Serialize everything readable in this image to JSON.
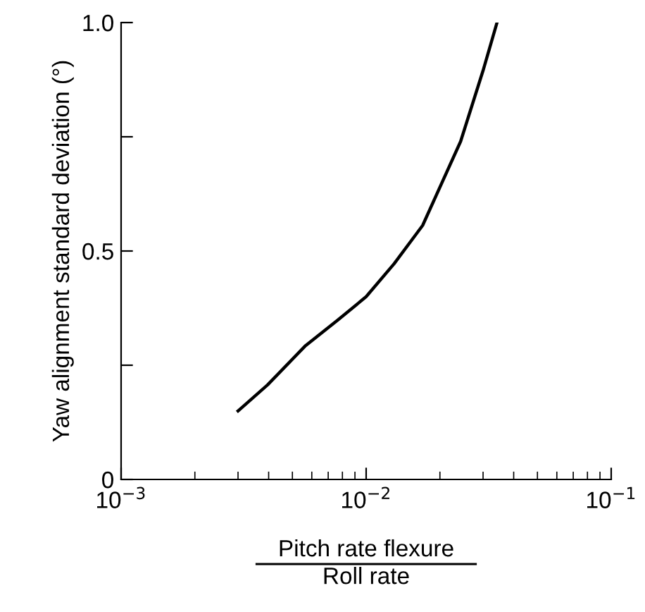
{
  "chart_data": {
    "type": "line",
    "xlabel": "Pitch rate flexure\nRoll rate",
    "ylabel": "Yaw alignment standard deviation (°)",
    "log": "x",
    "xlim": [
      0.001,
      0.1
    ],
    "ylim": [
      0,
      1.0
    ],
    "xticks": [
      {
        "value": 0.001,
        "label": "10$^{−3}$"
      },
      {
        "value": 0.01,
        "label": "10$^{−2}$"
      },
      {
        "value": 0.1,
        "label": "10$^{−1}$"
      }
    ],
    "yticks": [
      0,
      {
        "value": 0.25,
        "label": null
      },
      0.5,
      {
        "value": 0.75,
        "label": null
      },
      {
        "value": 1.0,
        "label": "1.0"
      }
    ],
    "grid": false,
    "marker": "none",
    "line_style": "solid",
    "series": [
      {
        "color": "#000000",
        "x": [
          0.003,
          0.00396,
          0.00566,
          0.00767,
          0.01,
          0.013,
          0.017,
          0.0243,
          0.03,
          0.0342
        ],
        "values": [
          0.15,
          0.207,
          0.293,
          0.349,
          0.4,
          0.472,
          0.556,
          0.74,
          0.895,
          1.0
        ]
      }
    ]
  }
}
